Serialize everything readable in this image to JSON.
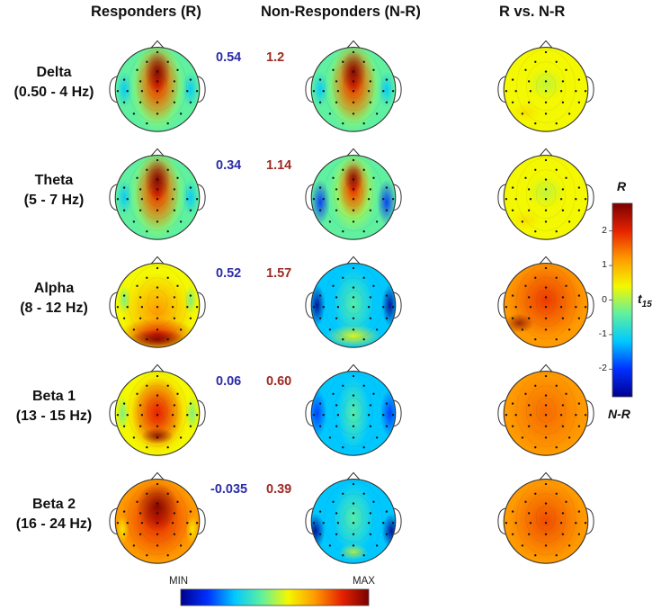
{
  "headers": {
    "responders": "Responders (R)",
    "non_responders": "Non-Responders (N-R)",
    "contrast": "R vs. N-R"
  },
  "bands": [
    {
      "name": "Delta",
      "range": "(0.50 - 4 Hz)",
      "r_value": "0.54",
      "nr_value": "1.2",
      "r_pattern": "frontal",
      "nr_pattern": "frontal",
      "contrast_pattern": "yellow"
    },
    {
      "name": "Theta",
      "range": "(5 - 7 Hz)",
      "r_value": "0.34",
      "nr_value": "1.14",
      "r_pattern": "frontal",
      "nr_pattern": "frontal-narrow",
      "contrast_pattern": "yellow"
    },
    {
      "name": "Alpha",
      "range": "(8 - 12 Hz)",
      "r_value": "0.52",
      "nr_value": "1.57",
      "r_pattern": "posterior",
      "nr_pattern": "low-posterior",
      "contrast_pattern": "red-orange"
    },
    {
      "name": "Beta 1",
      "range": "(13 - 15 Hz)",
      "r_value": "0.06",
      "nr_value": "0.60",
      "r_pattern": "central-posterior",
      "nr_pattern": "low",
      "contrast_pattern": "orange"
    },
    {
      "name": "Beta 2",
      "range": "(16 - 24 Hz)",
      "r_value": "-0.035",
      "nr_value": "0.39",
      "r_pattern": "broad",
      "nr_pattern": "low-central",
      "contrast_pattern": "orange-red"
    }
  ],
  "colorbar_t": {
    "top_label": "R",
    "bottom_label": "N-R",
    "axis_label": "t",
    "axis_label_sub": "15",
    "ticks": [
      "2",
      "1",
      "0",
      "-1",
      "-2"
    ],
    "range": [
      -2.8,
      2.8
    ]
  },
  "colorbar_power": {
    "min_label": "MIN",
    "max_label": "MAX"
  },
  "colormap": [
    "#00008f",
    "#0030ff",
    "#00c8ff",
    "#5ff0a0",
    "#f4f800",
    "#ff9a00",
    "#e62200",
    "#7a0000"
  ]
}
